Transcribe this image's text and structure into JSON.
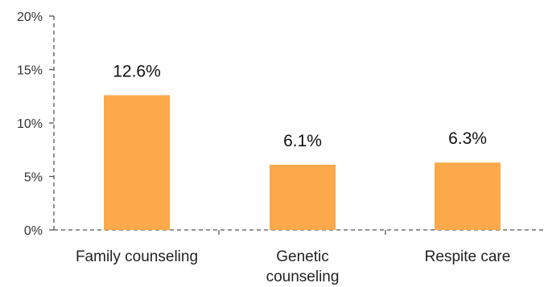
{
  "chart_data": {
    "type": "bar",
    "categories": [
      "Family counseling",
      "Genetic counseling",
      "Respite care"
    ],
    "category_lines": [
      [
        "Family counseling"
      ],
      [
        "Genetic",
        "counseling"
      ],
      [
        "Respite care"
      ]
    ],
    "values": [
      12.6,
      6.1,
      6.3
    ],
    "data_labels": [
      "12.6%",
      "6.1%",
      "6.3%"
    ],
    "yticks": [
      0,
      5,
      10,
      15,
      20
    ],
    "ytick_labels": [
      "0%",
      "5%",
      "10%",
      "15%",
      "20%"
    ],
    "ylim": [
      0,
      20
    ],
    "title": "",
    "xlabel": "",
    "ylabel": "",
    "bar_color": "#FBA94A",
    "axis_color": "#555555",
    "grid": false,
    "legend": "none"
  }
}
